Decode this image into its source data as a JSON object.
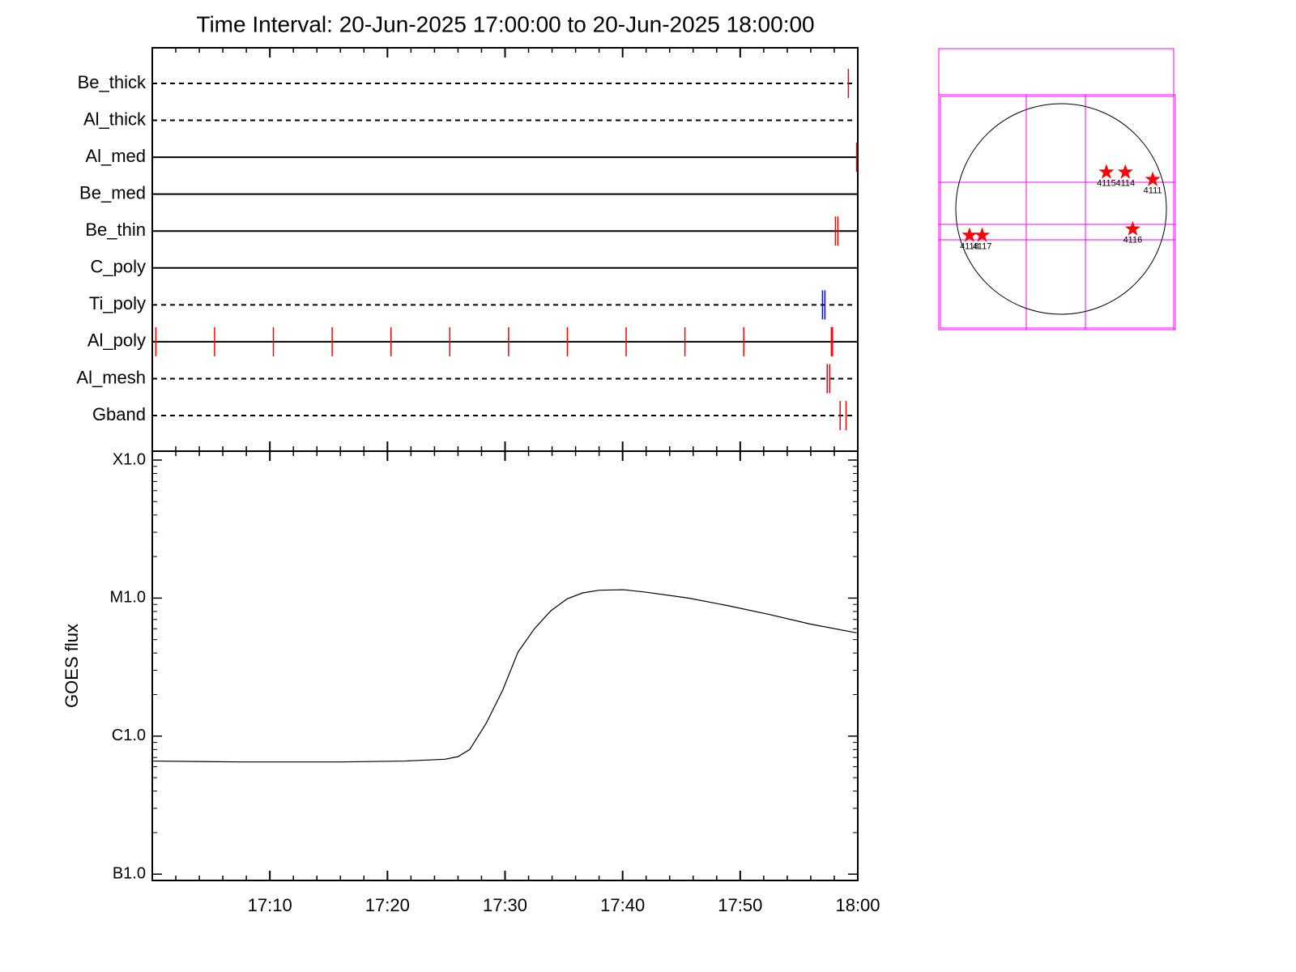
{
  "chart_data": [
    {
      "type": "timeline",
      "title": "Time Interval: 20-Jun-2025 17:00:00 to 20-Jun-2025 18:00:00",
      "xlim": [
        0,
        60
      ],
      "series": [
        {
          "name": "Be_thick",
          "linestyle": "dashed",
          "color": "#ff0000",
          "x": [
            59.2
          ]
        },
        {
          "name": "Al_thick",
          "linestyle": "dashed",
          "color": "#ff0000",
          "x": []
        },
        {
          "name": "Al_med",
          "linestyle": "solid",
          "color": "#ff0000",
          "x": [
            59.9
          ]
        },
        {
          "name": "Be_med",
          "linestyle": "solid",
          "color": "#ff0000",
          "x": []
        },
        {
          "name": "Be_thin",
          "linestyle": "solid",
          "color": "#ff0000",
          "x": [
            58.1,
            58.3
          ]
        },
        {
          "name": "C_poly",
          "linestyle": "solid",
          "color": "#ff0000",
          "x": []
        },
        {
          "name": "Ti_poly",
          "linestyle": "dashed",
          "color": "#0000ff",
          "x": [
            57.0,
            57.2
          ]
        },
        {
          "name": "Al_poly",
          "linestyle": "solid",
          "color": "#ff0000",
          "x": [
            0.3,
            5.3,
            10.3,
            15.3,
            20.3,
            25.3,
            30.3,
            35.3,
            40.3,
            45.3,
            50.3,
            57.75,
            57.85
          ]
        },
        {
          "name": "Al_mesh",
          "linestyle": "dashed",
          "color": "#ff0000",
          "x": [
            57.4,
            57.6
          ]
        },
        {
          "name": "Gband",
          "linestyle": "dashed",
          "color": "#ff0000",
          "x": [
            58.5,
            59.0
          ]
        }
      ]
    },
    {
      "type": "line",
      "ylabel": "GOES flux",
      "color": "#000000",
      "yscale": "log",
      "xlim": [
        0,
        60
      ],
      "ylim": [
        9e-08,
        0.000116
      ],
      "xticks": [
        {
          "value": 10,
          "label": "17:10"
        },
        {
          "value": 20,
          "label": "17:20"
        },
        {
          "value": 30,
          "label": "17:30"
        },
        {
          "value": 40,
          "label": "17:40"
        },
        {
          "value": 50,
          "label": "17:50"
        },
        {
          "value": 60,
          "label": "18:00"
        }
      ],
      "yticks": [
        {
          "value": 1e-07,
          "label": "B1.0"
        },
        {
          "value": 1e-06,
          "label": "C1.0"
        },
        {
          "value": 1e-05,
          "label": "M1.0"
        },
        {
          "value": 0.0001,
          "label": "X1.0"
        }
      ],
      "x": [
        0,
        7.7,
        16,
        21.5,
        24.9,
        26,
        27,
        28.4,
        29.8,
        31.1,
        32.5,
        33.9,
        35.3,
        36.6,
        38.0,
        40.1,
        42.1,
        45.6,
        49.0,
        52.5,
        55.9,
        59.9
      ],
      "values": [
        6.6e-07,
        6.5e-07,
        6.5e-07,
        6.6e-07,
        6.8e-07,
        7.1e-07,
        8e-07,
        1.24e-06,
        2.15e-06,
        4.06e-06,
        6e-06,
        8.1e-06,
        9.9e-06,
        1.09e-05,
        1.14e-05,
        1.15e-05,
        1.1e-05,
        1e-05,
        8.8e-06,
        7.6e-06,
        6.5e-06,
        5.6e-06
      ]
    },
    {
      "type": "map",
      "color": "#ff0000",
      "points": [
        {
          "label": "4115",
          "x": 0.43,
          "y": 0.35
        },
        {
          "label": "4114",
          "x": 0.61,
          "y": 0.35
        },
        {
          "label": "4111",
          "x": 0.87,
          "y": 0.28
        },
        {
          "label": "4116",
          "x": 0.68,
          "y": -0.19
        },
        {
          "label": "4118",
          "x": -0.87,
          "y": -0.25
        },
        {
          "label": "4117",
          "x": -0.75,
          "y": -0.25
        }
      ]
    }
  ]
}
